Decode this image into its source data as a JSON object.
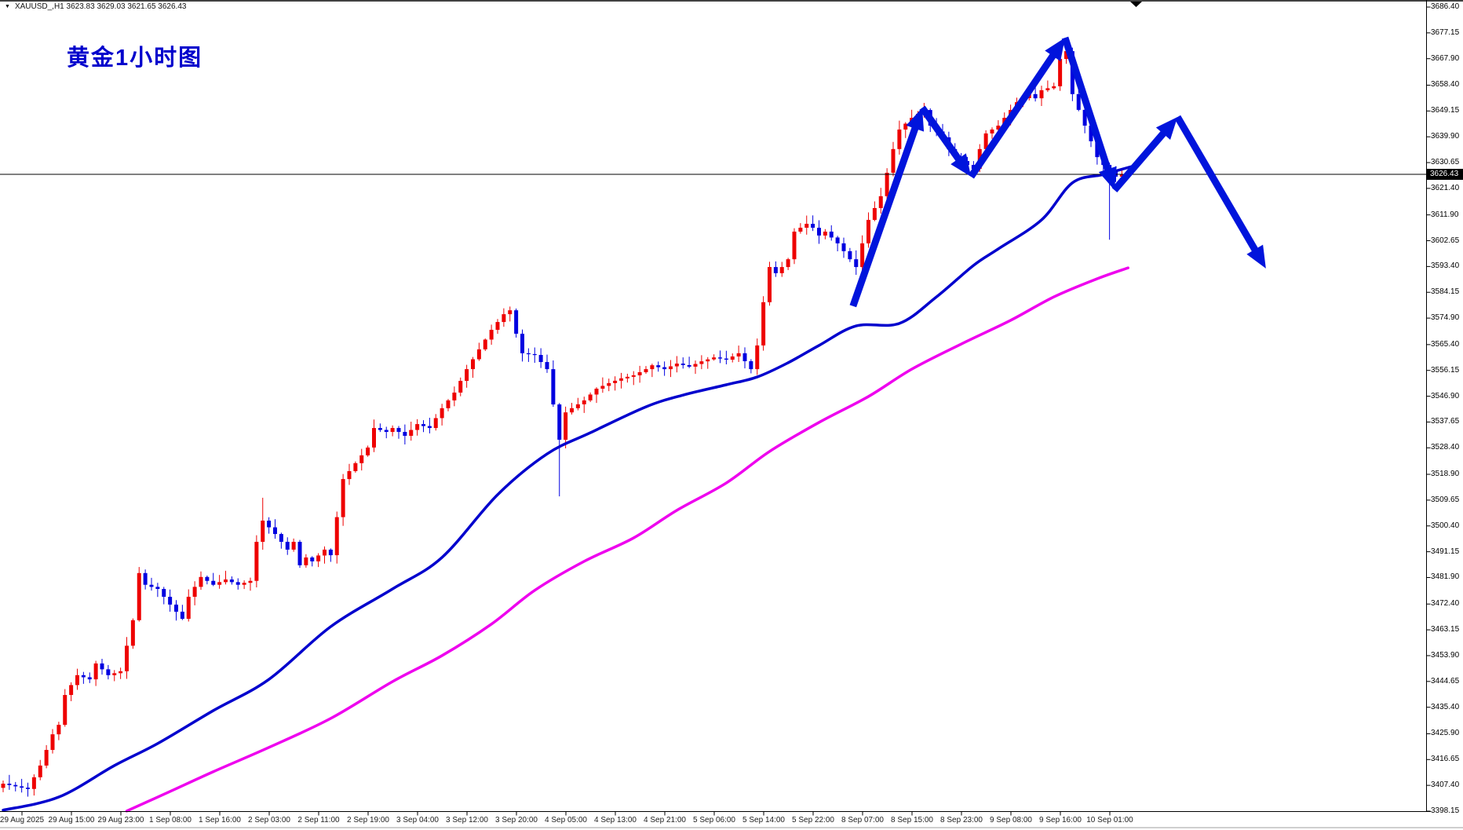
{
  "window": {
    "symbol_marker": "▼",
    "symbol_line": "XAUUSD_,H1  3623.83 3629.03 3621.65 3626.43"
  },
  "title": {
    "text": "黄金1小时图"
  },
  "chart_data": {
    "type": "candlestick",
    "symbol": "XAUUSD_",
    "timeframe": "H1",
    "title": "黄金1小时图",
    "current_bar_ohlc": {
      "open": 3623.83,
      "high": 3629.03,
      "low": 3621.65,
      "close": 3626.43
    },
    "current_price": 3626.43,
    "current_price_label": "3626.43",
    "colors": {
      "up": "#ee0000",
      "down": "#0000e0",
      "ma_fast": "#0000cd",
      "ma_slow": "#ee00ee",
      "annotation": "#0014dc",
      "price_line": "#000000",
      "axis_text": "#000000"
    },
    "y_axis_ticks": [
      3686.4,
      3677.15,
      3667.9,
      3658.4,
      3649.15,
      3639.9,
      3630.65,
      3621.4,
      3611.9,
      3602.65,
      3593.4,
      3584.15,
      3574.9,
      3565.4,
      3556.15,
      3546.9,
      3537.65,
      3528.4,
      3518.9,
      3509.65,
      3500.4,
      3491.15,
      3481.9,
      3472.4,
      3463.15,
      3453.9,
      3444.65,
      3435.4,
      3425.9,
      3416.65,
      3407.4,
      3398.15
    ],
    "x_axis_labels": [
      "29 Aug 2025",
      "29 Aug 15:00",
      "29 Aug 23:00",
      "1 Sep 08:00",
      "1 Sep 16:00",
      "2 Sep 03:00",
      "2 Sep 11:00",
      "2 Sep 19:00",
      "3 Sep 04:00",
      "3 Sep 12:00",
      "3 Sep 20:00",
      "4 Sep 05:00",
      "4 Sep 13:00",
      "4 Sep 21:00",
      "5 Sep 06:00",
      "5 Sep 14:00",
      "5 Sep 22:00",
      "8 Sep 07:00",
      "8 Sep 15:00",
      "8 Sep 23:00",
      "9 Sep 08:00",
      "9 Sep 16:00",
      "10 Sep 01:00"
    ],
    "bars_total": 182,
    "close_path": [
      [
        0,
        3408.0
      ],
      [
        4,
        3406.1
      ],
      [
        6,
        3414.5
      ],
      [
        8,
        3425.7
      ],
      [
        9,
        3429.1
      ],
      [
        10,
        3439.8
      ],
      [
        12,
        3446.9
      ],
      [
        14,
        3445.4
      ],
      [
        15,
        3451.1
      ],
      [
        17,
        3446.9
      ],
      [
        19,
        3448.3
      ],
      [
        21,
        3466.6
      ],
      [
        22,
        3483.5
      ],
      [
        23,
        3479.3
      ],
      [
        25,
        3477.8
      ],
      [
        27,
        3472.2
      ],
      [
        29,
        3467.1
      ],
      [
        30,
        3475.0
      ],
      [
        32,
        3482.1
      ],
      [
        34,
        3479.3
      ],
      [
        36,
        3481.2
      ],
      [
        38,
        3479.3
      ],
      [
        40,
        3480.7
      ],
      [
        41,
        3494.7
      ],
      [
        42,
        3502.3
      ],
      [
        44,
        3497.5
      ],
      [
        46,
        3491.9
      ],
      [
        47,
        3494.7
      ],
      [
        48,
        3486.3
      ],
      [
        49,
        3489.1
      ],
      [
        50,
        3487.7
      ],
      [
        52,
        3491.9
      ],
      [
        53,
        3489.9
      ],
      [
        55,
        3517.2
      ],
      [
        57,
        3522.9
      ],
      [
        59,
        3528.5
      ],
      [
        60,
        3535.5
      ],
      [
        62,
        3534.1
      ],
      [
        63,
        3535.5
      ],
      [
        65,
        3532.7
      ],
      [
        67,
        3536.9
      ],
      [
        69,
        3535.5
      ],
      [
        71,
        3542.6
      ],
      [
        73,
        3548.2
      ],
      [
        75,
        3556.6
      ],
      [
        77,
        3563.7
      ],
      [
        79,
        3570.7
      ],
      [
        81,
        3576.3
      ],
      [
        82,
        3577.7
      ],
      [
        83,
        3569.3
      ],
      [
        84,
        3562.3
      ],
      [
        86,
        3561.7
      ],
      [
        88,
        3556.6
      ],
      [
        90,
        3531.3
      ],
      [
        91,
        3541.1
      ],
      [
        92,
        3542.6
      ],
      [
        94,
        3545.4
      ],
      [
        96,
        3549.6
      ],
      [
        98,
        3551.6
      ],
      [
        100,
        3553.3
      ],
      [
        102,
        3554.4
      ],
      [
        104,
        3556.6
      ],
      [
        105,
        3558.0
      ],
      [
        107,
        3556.6
      ],
      [
        109,
        3558.6
      ],
      [
        111,
        3557.5
      ],
      [
        113,
        3559.4
      ],
      [
        115,
        3560.8
      ],
      [
        117,
        3560.0
      ],
      [
        119,
        3562.3
      ],
      [
        121,
        3556.6
      ],
      [
        122,
        3565.1
      ],
      [
        123,
        3580.6
      ],
      [
        124,
        3593.2
      ],
      [
        125,
        3591.0
      ],
      [
        126,
        3593.2
      ],
      [
        127,
        3596.0
      ],
      [
        128,
        3605.9
      ],
      [
        130,
        3608.7
      ],
      [
        131,
        3607.3
      ],
      [
        132,
        3604.5
      ],
      [
        133,
        3605.9
      ],
      [
        135,
        3601.7
      ],
      [
        136,
        3598.9
      ],
      [
        137,
        3596.0
      ],
      [
        138,
        3593.2
      ],
      [
        139,
        3601.7
      ],
      [
        140,
        3610.1
      ],
      [
        142,
        3618.6
      ],
      [
        143,
        3627.0
      ],
      [
        144,
        3635.5
      ],
      [
        145,
        3642.5
      ],
      [
        147,
        3646.7
      ],
      [
        148,
        3648.1
      ],
      [
        149,
        3649.5
      ],
      [
        150,
        3643.9
      ],
      [
        152,
        3639.7
      ],
      [
        153,
        3635.5
      ],
      [
        154,
        3632.6
      ],
      [
        156,
        3629.8
      ],
      [
        157,
        3628.4
      ],
      [
        158,
        3635.5
      ],
      [
        159,
        3641.1
      ],
      [
        161,
        3643.9
      ],
      [
        162,
        3646.7
      ],
      [
        163,
        3649.5
      ],
      [
        164,
        3652.3
      ],
      [
        166,
        3655.2
      ],
      [
        167,
        3653.7
      ],
      [
        168,
        3656.6
      ],
      [
        170,
        3658.0
      ],
      [
        171,
        3667.8
      ],
      [
        172,
        3670.6
      ],
      [
        173,
        3655.2
      ],
      [
        175,
        3643.9
      ],
      [
        176,
        3638.3
      ],
      [
        177,
        3632.6
      ],
      [
        178,
        3629.8
      ],
      [
        180,
        3625.6
      ],
      [
        181,
        3626.43
      ]
    ],
    "special_wicks": [
      {
        "i": 42,
        "high": 3510.5
      },
      {
        "i": 90,
        "low": 3511.0
      },
      {
        "i": 172,
        "high": 3673.0
      },
      {
        "i": 179,
        "low": 3603.0
      }
    ],
    "ma_fast": [
      [
        0,
        3398.5
      ],
      [
        9,
        3403.2
      ],
      [
        18,
        3414.5
      ],
      [
        25,
        3422.4
      ],
      [
        34,
        3434.2
      ],
      [
        43,
        3445.4
      ],
      [
        53,
        3464.3
      ],
      [
        63,
        3477.8
      ],
      [
        71,
        3489.1
      ],
      [
        80,
        3511.6
      ],
      [
        88,
        3526.2
      ],
      [
        95,
        3533.8
      ],
      [
        104,
        3543.1
      ],
      [
        110,
        3547.3
      ],
      [
        117,
        3551.0
      ],
      [
        122,
        3553.8
      ],
      [
        127,
        3558.9
      ],
      [
        132,
        3565.1
      ],
      [
        138,
        3572.1
      ],
      [
        145,
        3573.0
      ],
      [
        151,
        3582.5
      ],
      [
        157,
        3593.8
      ],
      [
        161,
        3599.7
      ],
      [
        168,
        3610.1
      ],
      [
        173,
        3623.4
      ],
      [
        178,
        3626.4
      ],
      [
        183,
        3629.5
      ]
    ],
    "ma_slow": [
      [
        20,
        3398.2
      ],
      [
        27,
        3405.2
      ],
      [
        34,
        3412.3
      ],
      [
        43,
        3421.0
      ],
      [
        53,
        3431.4
      ],
      [
        63,
        3444.6
      ],
      [
        71,
        3453.9
      ],
      [
        79,
        3465.2
      ],
      [
        86,
        3477.3
      ],
      [
        94,
        3487.7
      ],
      [
        102,
        3496.1
      ],
      [
        109,
        3506.0
      ],
      [
        117,
        3515.8
      ],
      [
        124,
        3527.1
      ],
      [
        132,
        3537.5
      ],
      [
        140,
        3546.8
      ],
      [
        147,
        3556.6
      ],
      [
        155,
        3565.6
      ],
      [
        163,
        3574.1
      ],
      [
        170,
        3582.5
      ],
      [
        177,
        3589.0
      ],
      [
        182,
        3592.9
      ]
    ],
    "forecast_zigzag": [
      [
        137.5,
        3579.2
      ],
      [
        148.7,
        3650.3
      ],
      [
        156.6,
        3625.6
      ],
      [
        171.8,
        3675.4
      ],
      [
        179.8,
        3620.8
      ],
      [
        190.0,
        3647.0
      ],
      [
        204.3,
        3592.7
      ]
    ]
  }
}
